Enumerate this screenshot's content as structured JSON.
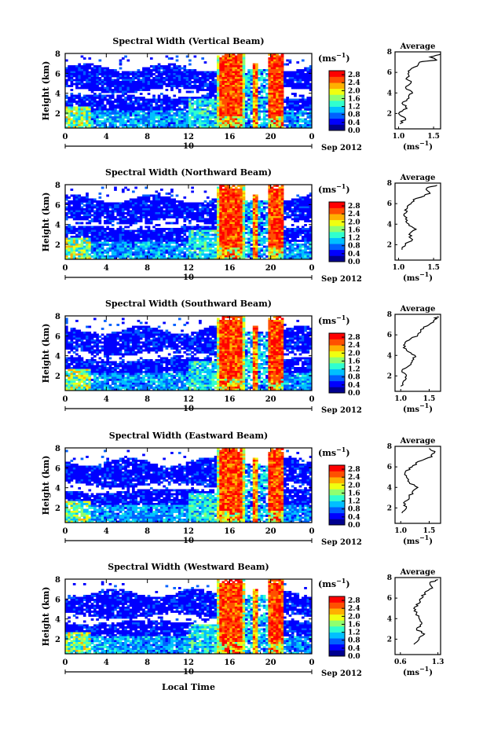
{
  "figure": {
    "xlabel": "Local Time",
    "date_label": "Sep 2012",
    "day_label": "10",
    "colorbar_unit_base": "(ms",
    "colorbar_unit_exp": "−1",
    "colorbar_unit_close": ")"
  },
  "chart_data": [
    {
      "type": "heatmap",
      "title": "Spectral Width (Vertical Beam)",
      "ylabel": "Height (km)",
      "x_ticks": [
        "0",
        "4",
        "8",
        "12",
        "16",
        "20",
        "0"
      ],
      "x_range_hours": [
        0,
        24
      ],
      "y_ticks": [
        "2",
        "4",
        "6",
        "8"
      ],
      "y_range_km": [
        0.5,
        8
      ],
      "colorbar": {
        "ticks": [
          "0.0",
          "0.4",
          "0.8",
          "1.2",
          "1.6",
          "2.0",
          "2.4",
          "2.8"
        ],
        "range": [
          0,
          3.0
        ]
      },
      "profile": {
        "title": "Average",
        "x_ticks": [
          "1.0",
          "1.5"
        ],
        "xlim": [
          0.95,
          1.6
        ],
        "y_ticks": [
          "2",
          "4",
          "6",
          "8"
        ],
        "ylim": [
          0.5,
          8
        ],
        "heights": [
          1.0,
          1.5,
          2.0,
          2.5,
          3.0,
          3.5,
          4.0,
          4.5,
          5.0,
          5.5,
          6.0,
          6.5,
          7.0,
          7.2,
          7.5,
          7.8
        ],
        "values": [
          1.02,
          1.1,
          1.0,
          1.12,
          1.05,
          1.15,
          1.2,
          1.1,
          1.18,
          1.12,
          1.15,
          1.22,
          1.3,
          1.55,
          1.45,
          1.6
        ]
      }
    },
    {
      "type": "heatmap",
      "title": "Spectral Width (Northward Beam)",
      "ylabel": "Height (km)",
      "x_ticks": [
        "0",
        "4",
        "8",
        "12",
        "16",
        "20",
        "0"
      ],
      "x_range_hours": [
        0,
        24
      ],
      "y_ticks": [
        "2",
        "4",
        "6",
        "8"
      ],
      "y_range_km": [
        0.5,
        8
      ],
      "colorbar": {
        "ticks": [
          "0.0",
          "0.4",
          "0.8",
          "1.2",
          "1.6",
          "2.0",
          "2.4",
          "2.8"
        ],
        "range": [
          0,
          3.0
        ]
      },
      "profile": {
        "title": "Average",
        "x_ticks": [
          "1.0",
          "1.5"
        ],
        "xlim": [
          0.95,
          1.6
        ],
        "y_ticks": [
          "2",
          "4",
          "6",
          "8"
        ],
        "ylim": [
          0.5,
          8
        ],
        "heights": [
          1.5,
          2.0,
          2.5,
          3.0,
          3.5,
          4.0,
          4.5,
          5.0,
          5.5,
          6.0,
          6.5,
          7.0,
          7.5,
          7.8
        ],
        "values": [
          1.05,
          1.1,
          1.2,
          1.15,
          1.25,
          1.15,
          1.1,
          1.08,
          1.12,
          1.18,
          1.25,
          1.45,
          1.4,
          1.55
        ]
      }
    },
    {
      "type": "heatmap",
      "title": "Spectral Width (Southward Beam)",
      "ylabel": "Height (km)",
      "x_ticks": [
        "0",
        "4",
        "8",
        "12",
        "16",
        "20",
        "0"
      ],
      "x_range_hours": [
        0,
        24
      ],
      "y_ticks": [
        "2",
        "4",
        "6",
        "8"
      ],
      "y_range_km": [
        0.5,
        8
      ],
      "colorbar": {
        "ticks": [
          "0.0",
          "0.4",
          "0.8",
          "1.2",
          "1.6",
          "2.0",
          "2.4",
          "2.8"
        ],
        "range": [
          0,
          3.0
        ]
      },
      "profile": {
        "title": "Average",
        "x_ticks": [
          "1.0",
          "1.5"
        ],
        "xlim": [
          0.9,
          1.7
        ],
        "y_ticks": [
          "2",
          "4",
          "6",
          "8"
        ],
        "ylim": [
          0.5,
          8
        ],
        "heights": [
          1.0,
          1.5,
          2.0,
          2.5,
          3.0,
          3.5,
          4.0,
          4.5,
          5.0,
          5.5,
          6.0,
          6.5,
          7.0,
          7.5,
          7.8
        ],
        "values": [
          1.0,
          1.05,
          1.1,
          1.02,
          1.15,
          1.2,
          1.25,
          1.1,
          1.05,
          1.15,
          1.3,
          1.35,
          1.5,
          1.6,
          1.65
        ]
      }
    },
    {
      "type": "heatmap",
      "title": "Spectral Width (Eastward Beam)",
      "ylabel": "Height (km)",
      "x_ticks": [
        "0",
        "4",
        "8",
        "12",
        "16",
        "20",
        "0"
      ],
      "x_range_hours": [
        0,
        24
      ],
      "y_ticks": [
        "2",
        "4",
        "6",
        "8"
      ],
      "y_range_km": [
        0.5,
        8
      ],
      "colorbar": {
        "ticks": [
          "0.0",
          "0.4",
          "0.8",
          "1.2",
          "1.6",
          "2.0",
          "2.4",
          "2.8"
        ],
        "range": [
          0,
          3.0
        ]
      },
      "profile": {
        "title": "Average",
        "x_ticks": [
          "1.0",
          "1.5"
        ],
        "xlim": [
          0.9,
          1.7
        ],
        "y_ticks": [
          "2",
          "4",
          "6",
          "8"
        ],
        "ylim": [
          0.5,
          8
        ],
        "heights": [
          1.5,
          2.0,
          2.5,
          3.0,
          3.5,
          4.0,
          4.5,
          5.0,
          5.5,
          6.0,
          6.5,
          7.0,
          7.5,
          7.8
        ],
        "values": [
          1.02,
          1.1,
          1.05,
          1.15,
          1.2,
          1.3,
          1.15,
          1.1,
          1.08,
          1.2,
          1.3,
          1.55,
          1.6,
          1.5
        ]
      }
    },
    {
      "type": "heatmap",
      "title": "Spectral Width (Westward Beam)",
      "ylabel": "Height (km)",
      "x_ticks": [
        "0",
        "4",
        "8",
        "12",
        "16",
        "20",
        "0"
      ],
      "x_range_hours": [
        0,
        24
      ],
      "y_ticks": [
        "2",
        "4",
        "6",
        "8"
      ],
      "y_range_km": [
        0.5,
        8
      ],
      "colorbar": {
        "ticks": [
          "0.0",
          "0.4",
          "0.8",
          "1.2",
          "1.6",
          "2.0",
          "2.4",
          "2.8"
        ],
        "range": [
          0,
          3.0
        ]
      },
      "profile": {
        "title": "Average",
        "x_ticks": [
          "0.6",
          "1.3"
        ],
        "xlim": [
          0.5,
          1.35
        ],
        "y_ticks": [
          "2",
          "4",
          "6",
          "8"
        ],
        "ylim": [
          0.5,
          8
        ],
        "heights": [
          1.5,
          2.0,
          2.5,
          3.0,
          3.5,
          4.0,
          4.5,
          5.0,
          5.5,
          6.0,
          6.5,
          7.0,
          7.5,
          7.8
        ],
        "values": [
          0.85,
          0.95,
          1.05,
          0.9,
          1.0,
          0.95,
          0.9,
          0.85,
          0.95,
          1.0,
          1.05,
          1.2,
          1.15,
          1.3
        ]
      }
    }
  ],
  "colormap": [
    "#00008f",
    "#0000ff",
    "#0060ff",
    "#00c0ff",
    "#30ffcf",
    "#90ff6f",
    "#f0ff10",
    "#ffb000",
    "#ff5000",
    "#ff0000"
  ]
}
